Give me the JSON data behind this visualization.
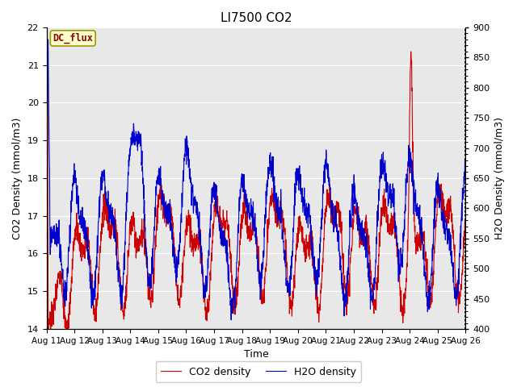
{
  "title": "LI7500 CO2",
  "xlabel": "Time",
  "ylabel_left": "CO2 Density (mmol/m3)",
  "ylabel_right": "H2O Density (mmol/m3)",
  "ylim_left": [
    14.0,
    22.0
  ],
  "ylim_right": [
    400,
    900
  ],
  "legend_co2": "CO2 density",
  "legend_h2o": "H2O density",
  "color_co2": "#cc0000",
  "color_h2o": "#0000cc",
  "annotation_text": "DC_flux",
  "annotation_facecolor": "#ffffcc",
  "annotation_edgecolor": "#999900",
  "x_tick_labels": [
    "Aug 11",
    "Aug 12",
    "Aug 13",
    "Aug 14",
    "Aug 15",
    "Aug 16",
    "Aug 17",
    "Aug 18",
    "Aug 19",
    "Aug 20",
    "Aug 21",
    "Aug 22",
    "Aug 23",
    "Aug 24",
    "Aug 25",
    "Aug 26"
  ],
  "background_color": "#e8e8e8",
  "title_fontsize": 11,
  "axis_fontsize": 9,
  "tick_fontsize": 8
}
